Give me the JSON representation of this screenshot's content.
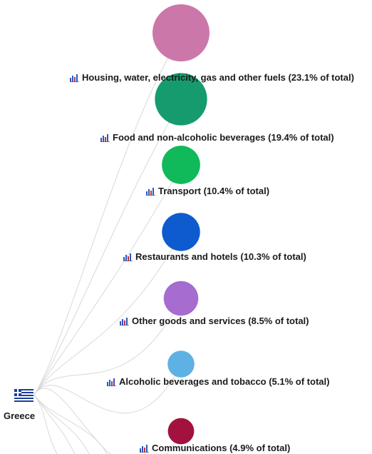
{
  "root": {
    "label": "Greece",
    "flag_colors": {
      "blue": "#1a3e9a",
      "white": "#ffffff"
    }
  },
  "chart_data": {
    "type": "tree",
    "root": "Greece",
    "unit": "% of total",
    "nodes": [
      {
        "label": "Housing, water, electricity, gas and other fuels (23.1% of total)",
        "name": "Housing, water, electricity, gas and other fuels",
        "value": 23.1,
        "color": "#cc77aa"
      },
      {
        "label": "Food and non-alcoholic beverages (19.4% of total)",
        "name": "Food and non-alcoholic beverages",
        "value": 19.4,
        "color": "#169b6e"
      },
      {
        "label": "Transport (10.4% of total)",
        "name": "Transport",
        "value": 10.4,
        "color": "#10b95a"
      },
      {
        "label": "Restaurants and hotels (10.3% of total)",
        "name": "Restaurants and hotels",
        "value": 10.3,
        "color": "#0d5bcf"
      },
      {
        "label": "Other goods and services (8.5% of total)",
        "name": "Other goods and services",
        "value": 8.5,
        "color": "#a66ccf"
      },
      {
        "label": "Alcoholic beverages and tobacco (5.1% of total)",
        "name": "Alcoholic beverages and tobacco",
        "value": 5.1,
        "color": "#5eb1e3"
      },
      {
        "label": "Communications (4.9% of total)",
        "name": "Communications",
        "value": 4.9,
        "color": "#a3123f"
      }
    ],
    "link_color": "#d9d9d9",
    "icon": "bar-chart-icon"
  }
}
